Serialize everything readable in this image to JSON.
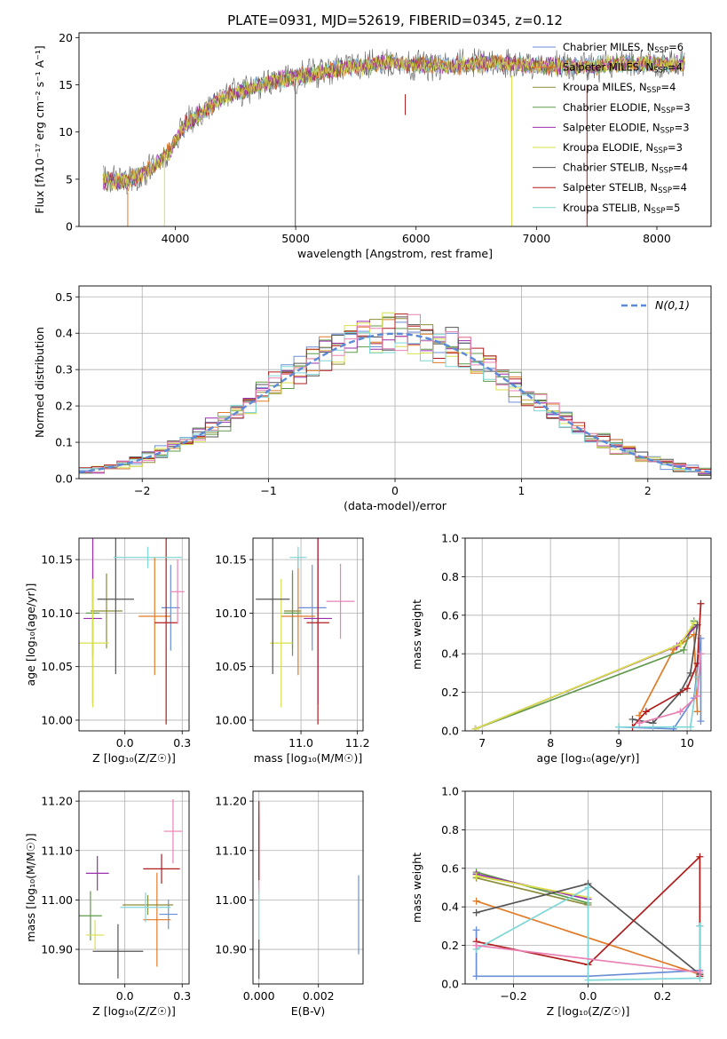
{
  "figure_title": "PLATE=0931, MJD=52619, FIBERID=0345, z=0.12",
  "colors": [
    "#6a8fd6",
    "#e07b28",
    "#8c8c3a",
    "#5f9a4a",
    "#9b2fae",
    "#d8e04a",
    "#555555",
    "#b01c1c",
    "#7fd6d6"
  ],
  "chart_data": [
    {
      "id": "spectrum",
      "type": "line",
      "title": "PLATE=0931, MJD=52619, FIBERID=0345, z=0.12",
      "xlabel": "wavelength [Angstrom, rest frame]",
      "ylabel": "Flux [fλ10⁻¹⁷ erg cm⁻² s⁻¹ A⁻¹]",
      "xlim": [
        3200,
        8450
      ],
      "ylim": [
        0,
        20.5
      ],
      "xticks": [
        4000,
        5000,
        6000,
        7000,
        8000
      ],
      "yticks": [
        0,
        5,
        10,
        15,
        20
      ],
      "grid": false,
      "legend": "right",
      "continuum": {
        "x": [
          3400,
          3600,
          3800,
          3950,
          4050,
          4200,
          4400,
          4600,
          4800,
          5000,
          5200,
          5400,
          5600,
          5800,
          6000,
          6200,
          6400,
          6600,
          6800,
          7000,
          7200,
          7400,
          7600,
          7800,
          8000,
          8200
        ],
        "y": [
          4.8,
          4.6,
          6.2,
          8.0,
          10.5,
          12.0,
          13.8,
          14.6,
          15.4,
          15.8,
          16.3,
          16.8,
          17.0,
          17.3,
          17.0,
          17.2,
          17.0,
          17.2,
          17.3,
          17.0,
          16.9,
          17.0,
          17.1,
          17.2,
          17.4,
          17.2
        ]
      },
      "spikes": [
        {
          "x": 3605,
          "from": 3.6,
          "to": 0,
          "series": 1
        },
        {
          "x": 3910,
          "from": 7.8,
          "to": 0,
          "series": 5
        },
        {
          "x": 4997,
          "from": 15.6,
          "to": 0,
          "series": 6
        },
        {
          "x": 5910,
          "from": 14.0,
          "to": 11.8,
          "series": 7
        },
        {
          "x": 6795,
          "from": 16.0,
          "to": 0,
          "series": 5
        },
        {
          "x": 7420,
          "from": 15.0,
          "to": 0,
          "series": 7
        }
      ],
      "series": [
        {
          "name": "Chabrier MILES, N",
          "sub": "SSP",
          "suffix": "=6"
        },
        {
          "name": "Salpeter MILES, N",
          "sub": "SSP",
          "suffix": "=4"
        },
        {
          "name": "Kroupa MILES, N",
          "sub": "SSP",
          "suffix": "=4"
        },
        {
          "name": "Chabrier ELODIE, N",
          "sub": "SSP",
          "suffix": "=3"
        },
        {
          "name": "Salpeter ELODIE, N",
          "sub": "SSP",
          "suffix": "=3"
        },
        {
          "name": "Kroupa ELODIE, N",
          "sub": "SSP",
          "suffix": "=3"
        },
        {
          "name": "Chabrier STELIB, N",
          "sub": "SSP",
          "suffix": "=4"
        },
        {
          "name": "Salpeter STELIB, N",
          "sub": "SSP",
          "suffix": "=4"
        },
        {
          "name": "Kroupa STELIB, N",
          "sub": "SSP",
          "suffix": "=5"
        }
      ]
    },
    {
      "id": "residuals",
      "type": "line",
      "xlabel": "(data-model)/error",
      "ylabel": "Normed distribution",
      "xlim": [
        -2.5,
        2.5
      ],
      "ylim": [
        0,
        0.53
      ],
      "xticks": [
        -2,
        -1,
        0,
        1,
        2
      ],
      "yticks": [
        0.0,
        0.1,
        0.2,
        0.3,
        0.4,
        0.5
      ],
      "grid": true,
      "legend": "top-right",
      "bin_width": 0.1,
      "normal_curve": {
        "label": "N(0,1)",
        "color": "#5b8ad8",
        "style": "dashed"
      }
    },
    {
      "id": "age-vs-z",
      "type": "scatter",
      "xlabel": "Z [log₁₀(Z/Z☉)]",
      "ylabel": "age  [log₁₀(age/yr)]",
      "xlim": [
        -0.2,
        0.28
      ],
      "ylim": [
        9.99,
        10.17
      ],
      "xticks": [
        0.0,
        0.25
      ],
      "yticks": [
        10.0,
        10.05,
        10.1,
        10.15
      ],
      "grid": true,
      "points": [
        {
          "x": 0.2,
          "xerr": 0.04,
          "y": 10.105,
          "yerr": 0.04,
          "c": 0
        },
        {
          "x": 0.13,
          "xerr": 0.07,
          "y": 10.097,
          "yerr": 0.055,
          "c": 1
        },
        {
          "x": -0.08,
          "xerr": 0.07,
          "y": 10.102,
          "yerr": 0.035,
          "c": 2
        },
        {
          "x": -0.14,
          "xerr": 0.03,
          "y": 10.1,
          "yerr": 0.04,
          "c": 3
        },
        {
          "x": -0.14,
          "xerr": 0.04,
          "y": 10.095,
          "yerr": 0.08,
          "c": 4
        },
        {
          "x": -0.14,
          "xerr": 0.07,
          "y": 10.072,
          "yerr": 0.06,
          "c": 5
        },
        {
          "x": -0.04,
          "xerr": 0.08,
          "y": 10.113,
          "yerr": 0.07,
          "c": 6
        },
        {
          "x": 0.18,
          "xerr": 0.05,
          "y": 10.091,
          "yerr": 0.095,
          "c": 7
        },
        {
          "x": 0.1,
          "xerr": 0.15,
          "y": 10.152,
          "yerr": 0.01,
          "c": 8
        },
        {
          "x": 0.23,
          "xerr": 0.03,
          "y": 10.12,
          "yerr": 0.03,
          "c": 9
        }
      ]
    },
    {
      "id": "age-vs-mass",
      "type": "scatter",
      "xlabel": "mass [log₁₀(M/M☉)]",
      "ylabel": "",
      "xlim": [
        10.83,
        11.22
      ],
      "ylim": [
        9.99,
        10.17
      ],
      "xticks": [
        11.0,
        11.2
      ],
      "yticks": [
        10.0,
        10.05,
        10.1,
        10.15
      ],
      "grid": true,
      "points": [
        {
          "x": 11.04,
          "xerr": 0.05,
          "y": 10.105,
          "yerr": 0.04,
          "c": 0
        },
        {
          "x": 10.99,
          "xerr": 0.06,
          "y": 10.097,
          "yerr": 0.055,
          "c": 1
        },
        {
          "x": 10.97,
          "xerr": 0.03,
          "y": 10.102,
          "yerr": 0.035,
          "c": 2
        },
        {
          "x": 10.97,
          "xerr": 0.03,
          "y": 10.1,
          "yerr": 0.04,
          "c": 3
        },
        {
          "x": 11.06,
          "xerr": 0.05,
          "y": 10.095,
          "yerr": 0.08,
          "c": 4
        },
        {
          "x": 10.93,
          "xerr": 0.04,
          "y": 10.072,
          "yerr": 0.06,
          "c": 5
        },
        {
          "x": 10.9,
          "xerr": 0.06,
          "y": 10.113,
          "yerr": 0.07,
          "c": 6
        },
        {
          "x": 11.06,
          "xerr": 0.04,
          "y": 10.091,
          "yerr": 0.095,
          "c": 7
        },
        {
          "x": 10.99,
          "xerr": 0.03,
          "y": 10.152,
          "yerr": 0.01,
          "c": 8
        },
        {
          "x": 11.14,
          "xerr": 0.05,
          "y": 10.111,
          "yerr": 0.035,
          "c": 9
        }
      ]
    },
    {
      "id": "mass-weight-vs-age",
      "type": "line",
      "xlabel": "age  [log₁₀(age/yr)]",
      "ylabel": "mass weight",
      "xlim": [
        6.75,
        10.35
      ],
      "ylim": [
        0,
        1
      ],
      "xticks": [
        7,
        8,
        9,
        10
      ],
      "yticks": [
        0.0,
        0.2,
        0.4,
        0.6,
        0.8,
        1.0
      ],
      "grid": true,
      "series": [
        {
          "c": 0,
          "x": [
            9.0,
            9.8,
            10.1,
            10.2,
            10.2
          ],
          "y": [
            0.02,
            0.01,
            0.17,
            0.48,
            0.05
          ]
        },
        {
          "c": 1,
          "x": [
            9.3,
            9.8,
            10.1,
            10.15
          ],
          "y": [
            0.08,
            0.42,
            0.5,
            0.1
          ]
        },
        {
          "c": 2,
          "x": [
            6.9,
            9.9,
            10.1
          ],
          "y": [
            0.01,
            0.45,
            0.54
          ]
        },
        {
          "c": 3,
          "x": [
            6.9,
            9.95,
            10.1
          ],
          "y": [
            0.01,
            0.42,
            0.57
          ]
        },
        {
          "c": 4,
          "x": [
            6.9,
            9.85,
            10.15
          ],
          "y": [
            0.01,
            0.44,
            0.55
          ]
        },
        {
          "c": 5,
          "x": [
            6.9,
            9.9,
            10.1
          ],
          "y": [
            0.01,
            0.45,
            0.56
          ]
        },
        {
          "c": 6,
          "x": [
            9.2,
            9.5,
            9.9,
            10.05,
            10.15
          ],
          "y": [
            0.06,
            0.04,
            0.2,
            0.3,
            0.55
          ]
        },
        {
          "c": 7,
          "x": [
            9.2,
            9.4,
            10.0,
            10.15,
            10.2
          ],
          "y": [
            0.02,
            0.1,
            0.22,
            0.35,
            0.66
          ]
        },
        {
          "c": 8,
          "x": [
            9.0,
            9.5,
            10.05,
            10.15
          ],
          "y": [
            0.02,
            0.02,
            0.02,
            0.28
          ]
        },
        {
          "c": 9,
          "x": [
            9.3,
            9.9,
            10.15,
            10.2
          ],
          "y": [
            0.04,
            0.1,
            0.18,
            0.4
          ]
        }
      ]
    },
    {
      "id": "mass-vs-z",
      "type": "scatter",
      "xlabel": "Z [log₁₀(Z/Z☉)]",
      "ylabel": "mass [log₁₀(M/M☉)]",
      "xlim": [
        -0.2,
        0.28
      ],
      "ylim": [
        10.83,
        11.22
      ],
      "xticks": [
        0.0,
        0.25
      ],
      "yticks": [
        10.9,
        11.0,
        11.1,
        11.2
      ],
      "grid": true,
      "points": [
        {
          "x": 0.19,
          "xerr": 0.04,
          "y": 10.971,
          "yerr": 0.03,
          "c": 0
        },
        {
          "x": 0.14,
          "xerr": 0.06,
          "y": 10.96,
          "yerr": 0.095,
          "c": 1
        },
        {
          "x": 0.1,
          "xerr": 0.11,
          "y": 10.99,
          "yerr": 0.02,
          "c": 2
        },
        {
          "x": -0.15,
          "xerr": 0.05,
          "y": 10.968,
          "yerr": 0.05,
          "c": 3
        },
        {
          "x": -0.12,
          "xerr": 0.05,
          "y": 11.054,
          "yerr": 0.035,
          "c": 4
        },
        {
          "x": -0.13,
          "xerr": 0.04,
          "y": 10.929,
          "yerr": 0.03,
          "c": 5
        },
        {
          "x": -0.03,
          "xerr": 0.11,
          "y": 10.896,
          "yerr": 0.055,
          "c": 6
        },
        {
          "x": 0.16,
          "xerr": 0.08,
          "y": 11.063,
          "yerr": 0.03,
          "c": 7
        },
        {
          "x": 0.09,
          "xerr": 0.11,
          "y": 10.985,
          "yerr": 0.03,
          "c": 8
        },
        {
          "x": 0.21,
          "xerr": 0.04,
          "y": 11.139,
          "yerr": 0.065,
          "c": 9
        }
      ]
    },
    {
      "id": "mass-vs-ebv",
      "type": "scatter",
      "xlabel": "E(B-V)",
      "ylabel": "",
      "xlim": [
        -0.0002,
        0.0035
      ],
      "ylim": [
        10.83,
        11.22
      ],
      "xticks": [
        0.0,
        0.002
      ],
      "yticks": [
        10.9,
        11.0,
        11.1,
        11.2
      ],
      "grid": true,
      "points": [
        {
          "x": 0.0,
          "y": 11.09,
          "yerr": 0.08,
          "c": 9
        },
        {
          "x": 0.0,
          "y": 11.12,
          "yerr": 0.08,
          "c": 7
        },
        {
          "x": 0.0,
          "y": 10.88,
          "yerr": 0.04,
          "c": 6
        },
        {
          "x": 0.0,
          "y": 10.97,
          "yerr": 0.05,
          "c": 8
        },
        {
          "x": 0.00335,
          "y": 10.97,
          "yerr": 0.08,
          "c": 0
        }
      ]
    },
    {
      "id": "mass-weight-vs-z",
      "type": "line",
      "xlabel": "Z [log₁₀(Z/Z☉)]",
      "ylabel": "mass weight",
      "xlim": [
        -0.33,
        0.33
      ],
      "ylim": [
        0,
        1
      ],
      "xticks": [
        -0.2,
        0.0,
        0.2
      ],
      "yticks": [
        0.0,
        0.2,
        0.4,
        0.6,
        0.8,
        1.0
      ],
      "grid": true,
      "series": [
        {
          "c": 0,
          "x": [
            -0.3,
            -0.3,
            0.0,
            0.3,
            0.3
          ],
          "y": [
            0.28,
            0.04,
            0.04,
            0.07,
            0.05
          ]
        },
        {
          "c": 1,
          "x": [
            -0.3,
            0.3
          ],
          "y": [
            0.43,
            0.05
          ]
        },
        {
          "c": 2,
          "x": [
            -0.3,
            0.0
          ],
          "y": [
            0.55,
            0.41
          ]
        },
        {
          "c": 3,
          "x": [
            -0.3,
            0.0
          ],
          "y": [
            0.58,
            0.42
          ]
        },
        {
          "c": 4,
          "x": [
            -0.3,
            0.0
          ],
          "y": [
            0.57,
            0.44
          ]
        },
        {
          "c": 5,
          "x": [
            -0.3,
            0.0
          ],
          "y": [
            0.56,
            0.45
          ]
        },
        {
          "c": 6,
          "x": [
            -0.3,
            0.0,
            0.3,
            0.3
          ],
          "y": [
            0.37,
            0.52,
            0.05,
            0.3
          ]
        },
        {
          "c": 7,
          "x": [
            -0.3,
            0.0,
            0.3,
            0.3
          ],
          "y": [
            0.22,
            0.1,
            0.66,
            0.04
          ]
        },
        {
          "c": 8,
          "x": [
            -0.3,
            0.0,
            0.0,
            0.3,
            0.3
          ],
          "y": [
            0.18,
            0.5,
            0.02,
            0.03,
            0.3
          ]
        },
        {
          "c": 9,
          "x": [
            -0.3,
            0.3
          ],
          "y": [
            0.2,
            0.06
          ]
        }
      ]
    }
  ]
}
